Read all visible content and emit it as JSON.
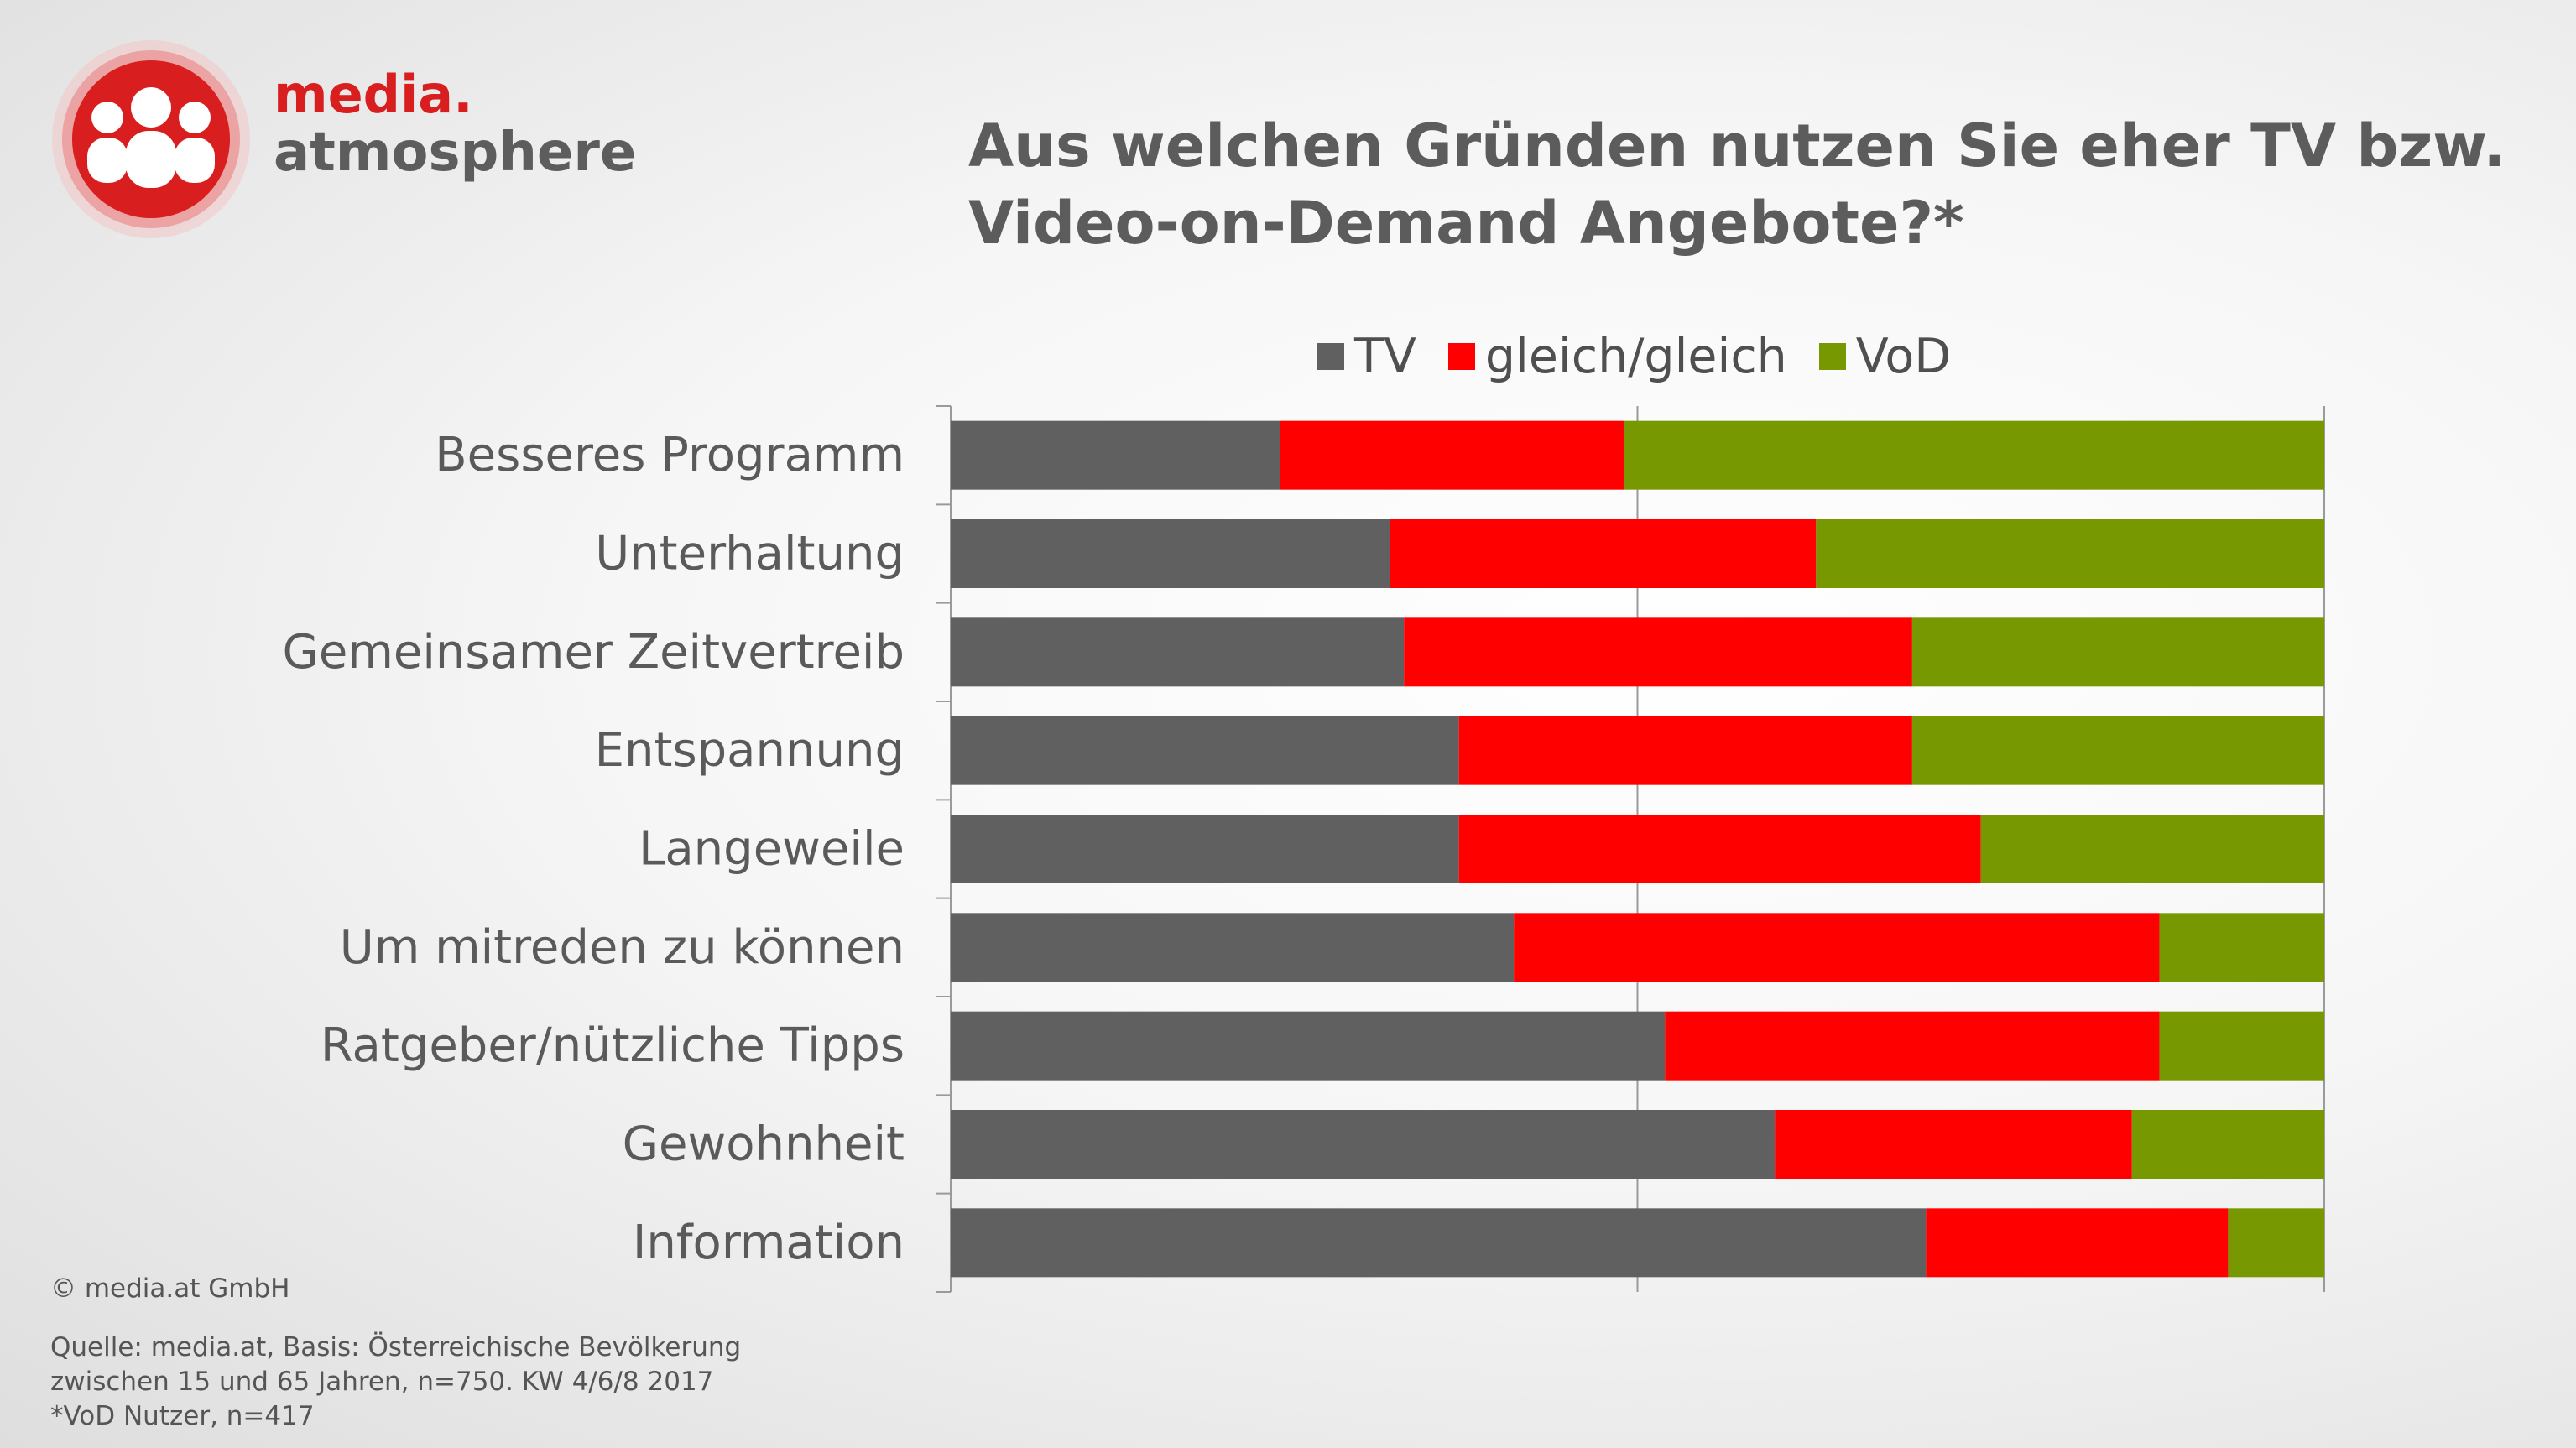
{
  "brand": {
    "line1": "media.",
    "line2": "atmosphere"
  },
  "header": {
    "title_line1": "Aus welchen Gründen nutzen Sie eher TV bzw.",
    "title_line2": "Video-on-Demand Angebote?*"
  },
  "colors": {
    "tv": "#606060",
    "gleich": "#ff0000",
    "vod": "#779800",
    "brand": "#d81e1e"
  },
  "chart_data": {
    "type": "bar",
    "orientation": "horizontal",
    "stacked": true,
    "percent_stacked": true,
    "title": "Aus welchen Gründen nutzen Sie eher TV bzw. Video-on-Demand Angebote?*",
    "xlabel": "",
    "ylabel": "",
    "xlim": [
      0,
      100
    ],
    "grid": true,
    "legend_position": "top",
    "categories": [
      "Besseres Programm",
      "Unterhaltung",
      "Gemeinsamer Zeitvertreib",
      "Entspannung",
      "Langeweile",
      "Um mitreden zu können",
      "Ratgeber/nützliche Tipps",
      "Gewohnheit",
      "Information"
    ],
    "series": [
      {
        "name": "TV",
        "color": "#606060",
        "values": [
          24,
          32,
          33,
          37,
          37,
          41,
          52,
          60,
          71
        ]
      },
      {
        "name": "gleich/gleich",
        "color": "#ff0000",
        "values": [
          25,
          31,
          37,
          33,
          38,
          47,
          36,
          26,
          22
        ]
      },
      {
        "name": "VoD",
        "color": "#779800",
        "values": [
          51,
          37,
          30,
          30,
          25,
          12,
          12,
          14,
          7
        ]
      }
    ]
  },
  "footer": {
    "copyright": "© media.at GmbH",
    "source_line1": "Quelle: media.at, Basis: Österreichische Bevölkerung",
    "source_line2": "zwischen 15 und 65 Jahren, n=750. KW 4/6/8 2017",
    "source_line3": "*VoD Nutzer, n=417"
  }
}
